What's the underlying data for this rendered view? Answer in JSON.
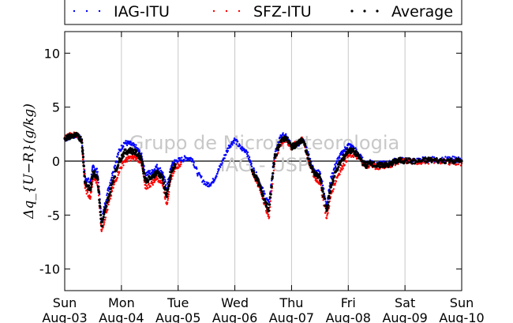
{
  "chart_data": {
    "type": "scatter",
    "title": "",
    "ylabel": "Δq_{U−R}(g/kg)",
    "xlabel": "",
    "ylim": [
      -12,
      12
    ],
    "yticks": [
      10,
      5,
      0,
      -5,
      -10
    ],
    "xlim": [
      0,
      7
    ],
    "xticks": [
      {
        "day": "Sun",
        "date": "Aug-03"
      },
      {
        "day": "Mon",
        "date": "Aug-04"
      },
      {
        "day": "Tue",
        "date": "Aug-05"
      },
      {
        "day": "Wed",
        "date": "Aug-06"
      },
      {
        "day": "Thu",
        "date": "Aug-07"
      },
      {
        "day": "Fri",
        "date": "Aug-08"
      },
      {
        "day": "Sat",
        "date": "Aug-09"
      },
      {
        "day": "Sun",
        "date": "Aug-10"
      }
    ],
    "grid": "vertical",
    "legend_position": "top",
    "watermark": [
      "Grupo de Micrometeorologia",
      "IAG - USP"
    ],
    "series": [
      {
        "name": "IAG-ITU",
        "color": "#0000ff",
        "points": [
          [
            0,
            2.0
          ],
          [
            0.1,
            2.3
          ],
          [
            0.2,
            2.4
          ],
          [
            0.3,
            2.0
          ],
          [
            0.36,
            -1.5
          ],
          [
            0.45,
            -2.0
          ],
          [
            0.5,
            -0.5
          ],
          [
            0.58,
            -1.0
          ],
          [
            0.65,
            -5.5
          ],
          [
            0.75,
            -3.0
          ],
          [
            0.85,
            -1.0
          ],
          [
            0.95,
            0.8
          ],
          [
            1.05,
            1.7
          ],
          [
            1.15,
            1.6
          ],
          [
            1.25,
            1.3
          ],
          [
            1.35,
            0.6
          ],
          [
            1.42,
            -1.2
          ],
          [
            1.55,
            -1.0
          ],
          [
            1.62,
            -0.5
          ],
          [
            1.72,
            -1.0
          ],
          [
            1.8,
            -2.5
          ],
          [
            1.88,
            -0.5
          ],
          [
            1.95,
            0.0
          ],
          [
            2.05,
            0.1
          ],
          [
            2.15,
            0.3
          ],
          [
            2.25,
            0.2
          ],
          [
            2.35,
            -1.2
          ],
          [
            2.5,
            -2.2
          ],
          [
            2.6,
            -2.0
          ],
          [
            2.7,
            -1.0
          ],
          [
            2.8,
            0.2
          ],
          [
            2.9,
            1.4
          ],
          [
            3.0,
            2.0
          ],
          [
            3.1,
            1.2
          ],
          [
            3.2,
            1.0
          ],
          [
            3.3,
            -0.5
          ],
          [
            3.4,
            -1.5
          ],
          [
            3.5,
            -2.8
          ],
          [
            3.6,
            -4.0
          ],
          [
            3.7,
            0.5
          ],
          [
            3.8,
            2.2
          ],
          [
            3.9,
            2.5
          ],
          [
            4.0,
            1.5
          ],
          [
            4.1,
            1.5
          ],
          [
            4.2,
            2.0
          ],
          [
            4.3,
            0.5
          ],
          [
            4.4,
            -1.0
          ],
          [
            4.5,
            -1.0
          ],
          [
            4.62,
            -4.0
          ],
          [
            4.7,
            -1.5
          ],
          [
            4.8,
            0.0
          ],
          [
            4.9,
            0.8
          ],
          [
            5.0,
            1.5
          ],
          [
            5.1,
            1.2
          ],
          [
            5.2,
            0.5
          ],
          [
            5.3,
            -0.3
          ],
          [
            5.4,
            0.0
          ],
          [
            5.5,
            -0.4
          ],
          [
            5.6,
            -0.2
          ],
          [
            5.7,
            -0.3
          ],
          [
            5.8,
            0.0
          ],
          [
            5.9,
            0.1
          ],
          [
            6.0,
            0.1
          ],
          [
            6.2,
            0.0
          ],
          [
            6.4,
            0.2
          ],
          [
            6.6,
            0.1
          ],
          [
            6.8,
            0.2
          ],
          [
            7.0,
            0.1
          ]
        ]
      },
      {
        "name": "SFZ-ITU",
        "color": "#ff0000",
        "points": [
          [
            0,
            2.2
          ],
          [
            0.1,
            2.4
          ],
          [
            0.2,
            2.5
          ],
          [
            0.3,
            2.0
          ],
          [
            0.36,
            -2.5
          ],
          [
            0.45,
            -3.5
          ],
          [
            0.5,
            -1.5
          ],
          [
            0.58,
            -2.0
          ],
          [
            0.65,
            -6.5
          ],
          [
            0.75,
            -4.5
          ],
          [
            0.85,
            -2.5
          ],
          [
            0.95,
            -1.0
          ],
          [
            1.05,
            0.0
          ],
          [
            1.15,
            0.3
          ],
          [
            1.25,
            0.3
          ],
          [
            1.35,
            0.0
          ],
          [
            1.42,
            -2.5
          ],
          [
            1.55,
            -2.0
          ],
          [
            1.62,
            -1.5
          ],
          [
            1.72,
            -2.0
          ],
          [
            1.8,
            -4.0
          ],
          [
            1.88,
            -1.5
          ],
          [
            1.95,
            -0.5
          ],
          [
            2.05,
            -0.3
          ],
          [
            3.3,
            -1.0
          ],
          [
            3.4,
            -2.0
          ],
          [
            3.5,
            -3.5
          ],
          [
            3.6,
            -5.3
          ],
          [
            3.7,
            0.0
          ],
          [
            3.8,
            1.5
          ],
          [
            3.9,
            2.0
          ],
          [
            4.0,
            1.2
          ],
          [
            4.1,
            1.8
          ],
          [
            4.2,
            2.0
          ],
          [
            4.3,
            0.0
          ],
          [
            4.4,
            -1.5
          ],
          [
            4.5,
            -2.0
          ],
          [
            4.62,
            -5.3
          ],
          [
            4.7,
            -3.0
          ],
          [
            4.8,
            -1.5
          ],
          [
            4.9,
            -0.5
          ],
          [
            5.0,
            0.5
          ],
          [
            5.1,
            0.6
          ],
          [
            5.2,
            0.2
          ],
          [
            5.3,
            -0.5
          ],
          [
            5.4,
            -0.3
          ],
          [
            5.5,
            -0.6
          ],
          [
            5.6,
            -0.4
          ],
          [
            5.7,
            -0.5
          ],
          [
            5.8,
            -0.2
          ],
          [
            5.9,
            0.0
          ],
          [
            6.0,
            0.0
          ],
          [
            6.2,
            -0.1
          ],
          [
            6.4,
            0.0
          ],
          [
            6.6,
            0.0
          ],
          [
            6.8,
            -0.1
          ],
          [
            7.0,
            -0.2
          ]
        ]
      },
      {
        "name": "Average",
        "color": "#000000",
        "points": [
          [
            0,
            2.1
          ],
          [
            0.1,
            2.3
          ],
          [
            0.2,
            2.4
          ],
          [
            0.3,
            2.0
          ],
          [
            0.36,
            -2.0
          ],
          [
            0.45,
            -2.7
          ],
          [
            0.5,
            -1.0
          ],
          [
            0.58,
            -1.5
          ],
          [
            0.65,
            -6.0
          ],
          [
            0.75,
            -3.8
          ],
          [
            0.85,
            -1.8
          ],
          [
            0.95,
            -0.1
          ],
          [
            1.05,
            0.8
          ],
          [
            1.15,
            1.0
          ],
          [
            1.25,
            0.8
          ],
          [
            1.35,
            0.3
          ],
          [
            1.42,
            -1.8
          ],
          [
            1.55,
            -1.5
          ],
          [
            1.62,
            -1.0
          ],
          [
            1.72,
            -1.5
          ],
          [
            1.8,
            -3.3
          ],
          [
            1.88,
            -1.0
          ],
          [
            1.95,
            -0.3
          ],
          [
            3.3,
            -0.8
          ],
          [
            3.4,
            -1.8
          ],
          [
            3.5,
            -3.2
          ],
          [
            3.6,
            -4.6
          ],
          [
            3.7,
            0.3
          ],
          [
            3.8,
            1.8
          ],
          [
            3.9,
            2.2
          ],
          [
            4.0,
            1.3
          ],
          [
            4.1,
            1.6
          ],
          [
            4.2,
            2.0
          ],
          [
            4.3,
            0.2
          ],
          [
            4.4,
            -1.2
          ],
          [
            4.5,
            -1.5
          ],
          [
            4.62,
            -4.6
          ],
          [
            4.7,
            -2.2
          ],
          [
            4.8,
            -0.7
          ],
          [
            4.9,
            0.2
          ],
          [
            5.0,
            1.0
          ],
          [
            5.1,
            0.9
          ],
          [
            5.2,
            0.3
          ],
          [
            5.3,
            -0.4
          ],
          [
            5.4,
            -0.1
          ],
          [
            5.5,
            -0.5
          ],
          [
            5.6,
            -0.3
          ],
          [
            5.7,
            -0.4
          ],
          [
            5.8,
            -0.1
          ],
          [
            5.9,
            0.05
          ],
          [
            6.0,
            0.05
          ],
          [
            6.2,
            -0.05
          ],
          [
            6.4,
            0.1
          ],
          [
            6.6,
            0.05
          ],
          [
            6.8,
            0.05
          ],
          [
            7.0,
            0.0
          ]
        ]
      }
    ]
  }
}
